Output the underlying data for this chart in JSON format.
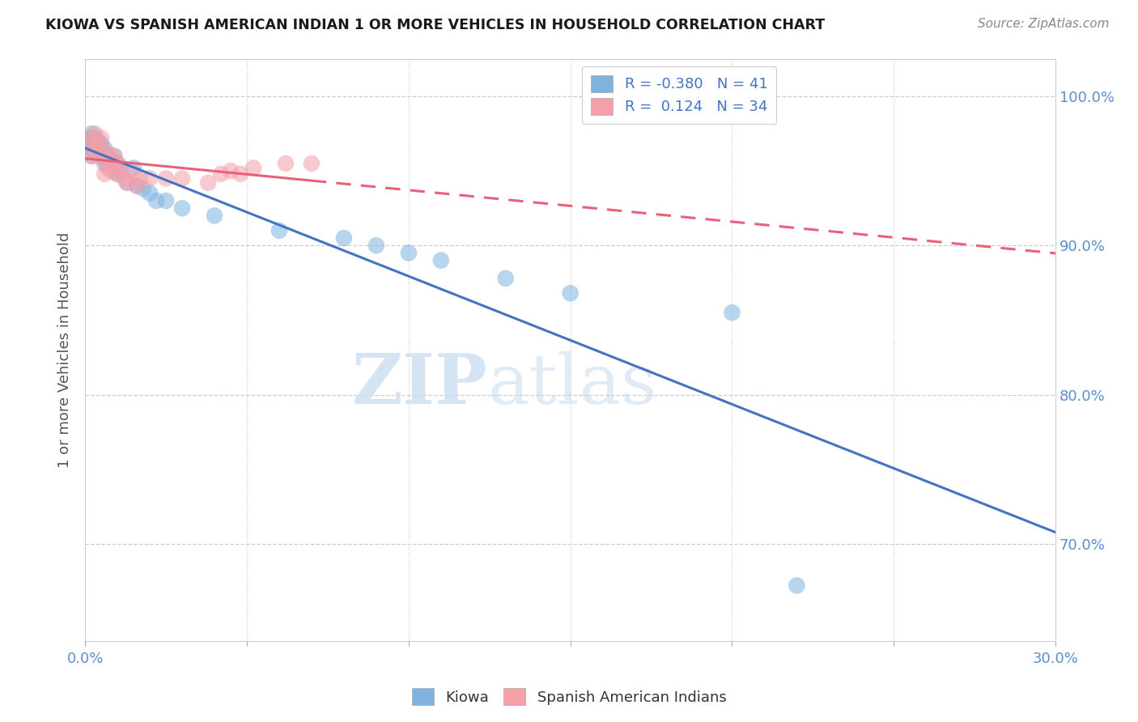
{
  "title": "KIOWA VS SPANISH AMERICAN INDIAN 1 OR MORE VEHICLES IN HOUSEHOLD CORRELATION CHART",
  "source": "Source: ZipAtlas.com",
  "ylabel": "1 or more Vehicles in Household",
  "xlim": [
    0.0,
    0.3
  ],
  "ylim": [
    0.635,
    1.025
  ],
  "R_kiowa": -0.38,
  "N_kiowa": 41,
  "R_spanish": 0.124,
  "N_spanish": 34,
  "kiowa_color": "#7EB3E0",
  "spanish_color": "#F4A0A8",
  "kiowa_line_color": "#4472C4",
  "spanish_line_color": "#E8607A",
  "watermark_zip": "ZIP",
  "watermark_atlas": "atlas",
  "kiowa_x": [
    0.0,
    0.001,
    0.001,
    0.002,
    0.002,
    0.002,
    0.003,
    0.003,
    0.003,
    0.004,
    0.004,
    0.005,
    0.005,
    0.006,
    0.006,
    0.006,
    0.007,
    0.007,
    0.008,
    0.009,
    0.01,
    0.01,
    0.011,
    0.013,
    0.015,
    0.016,
    0.018,
    0.02,
    0.022,
    0.025,
    0.03,
    0.04,
    0.06,
    0.08,
    0.09,
    0.1,
    0.11,
    0.13,
    0.15,
    0.2,
    0.22
  ],
  "kiowa_y": [
    0.97,
    0.972,
    0.968,
    0.975,
    0.965,
    0.96,
    0.972,
    0.968,
    0.962,
    0.97,
    0.965,
    0.968,
    0.96,
    0.965,
    0.955,
    0.962,
    0.96,
    0.955,
    0.958,
    0.96,
    0.955,
    0.948,
    0.95,
    0.942,
    0.952,
    0.94,
    0.938,
    0.935,
    0.93,
    0.93,
    0.925,
    0.92,
    0.91,
    0.905,
    0.9,
    0.895,
    0.89,
    0.878,
    0.868,
    0.855,
    0.672
  ],
  "spanish_x": [
    0.001,
    0.002,
    0.002,
    0.003,
    0.003,
    0.004,
    0.004,
    0.005,
    0.005,
    0.006,
    0.006,
    0.007,
    0.007,
    0.008,
    0.008,
    0.009,
    0.01,
    0.01,
    0.011,
    0.012,
    0.013,
    0.015,
    0.016,
    0.017,
    0.02,
    0.025,
    0.03,
    0.038,
    0.042,
    0.045,
    0.048,
    0.052,
    0.062,
    0.07
  ],
  "spanish_y": [
    0.968,
    0.972,
    0.96,
    0.965,
    0.975,
    0.968,
    0.96,
    0.965,
    0.972,
    0.958,
    0.948,
    0.962,
    0.952,
    0.958,
    0.95,
    0.96,
    0.955,
    0.948,
    0.952,
    0.945,
    0.942,
    0.948,
    0.94,
    0.945,
    0.945,
    0.945,
    0.945,
    0.942,
    0.948,
    0.95,
    0.948,
    0.952,
    0.955,
    0.955
  ],
  "kiowa_trendline": [
    0.9618,
    -0.532
  ],
  "spanish_trendline": [
    0.951,
    0.066
  ]
}
